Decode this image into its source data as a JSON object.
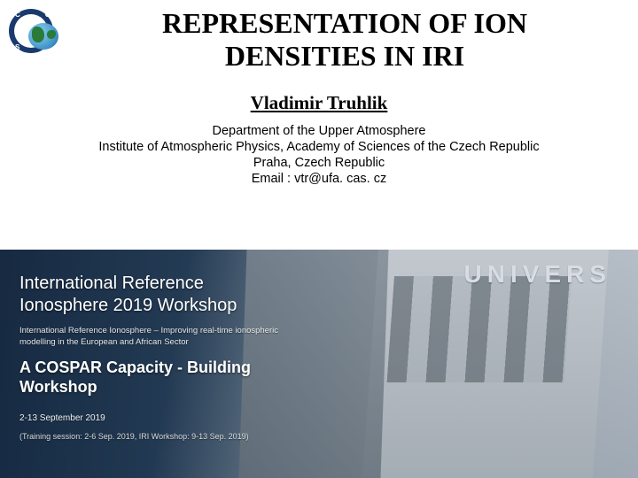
{
  "title": {
    "line1": "REPRESENTATION OF ION",
    "line2": "DENSITIES IN IRI"
  },
  "author": "Vladimir Truhlik",
  "affiliation": {
    "line1": "Department of the Upper Atmosphere",
    "line2": "Institute of Atmospheric Physics, Academy of Sciences of the Czech Republic",
    "line3": "Praha, Czech Republic",
    "line4": "Email : vtr@ufa. cas. cz"
  },
  "banner": {
    "building_sign": "UNIVERS",
    "workshop_title_l1": "International Reference",
    "workshop_title_l2": "Ionosphere 2019 Workshop",
    "subtitle_l1": "International Reference Ionosphere – Improving real-time ionospheric",
    "subtitle_l2": "modelling in the European and African Sector",
    "cospar_l1": "A COSPAR Capacity - Building",
    "cospar_l2": "Workshop",
    "dates": "2-13 September 2019",
    "training": "(Training session: 2-6 Sep. 2019, IRI Workshop: 9-13 Sep. 2019)"
  },
  "colors": {
    "title_color": "#000000",
    "banner_overlay_dark": "#0f2638",
    "banner_text": "#ffffff",
    "building_light": "#c2c8ce",
    "building_dark": "#636e78"
  }
}
